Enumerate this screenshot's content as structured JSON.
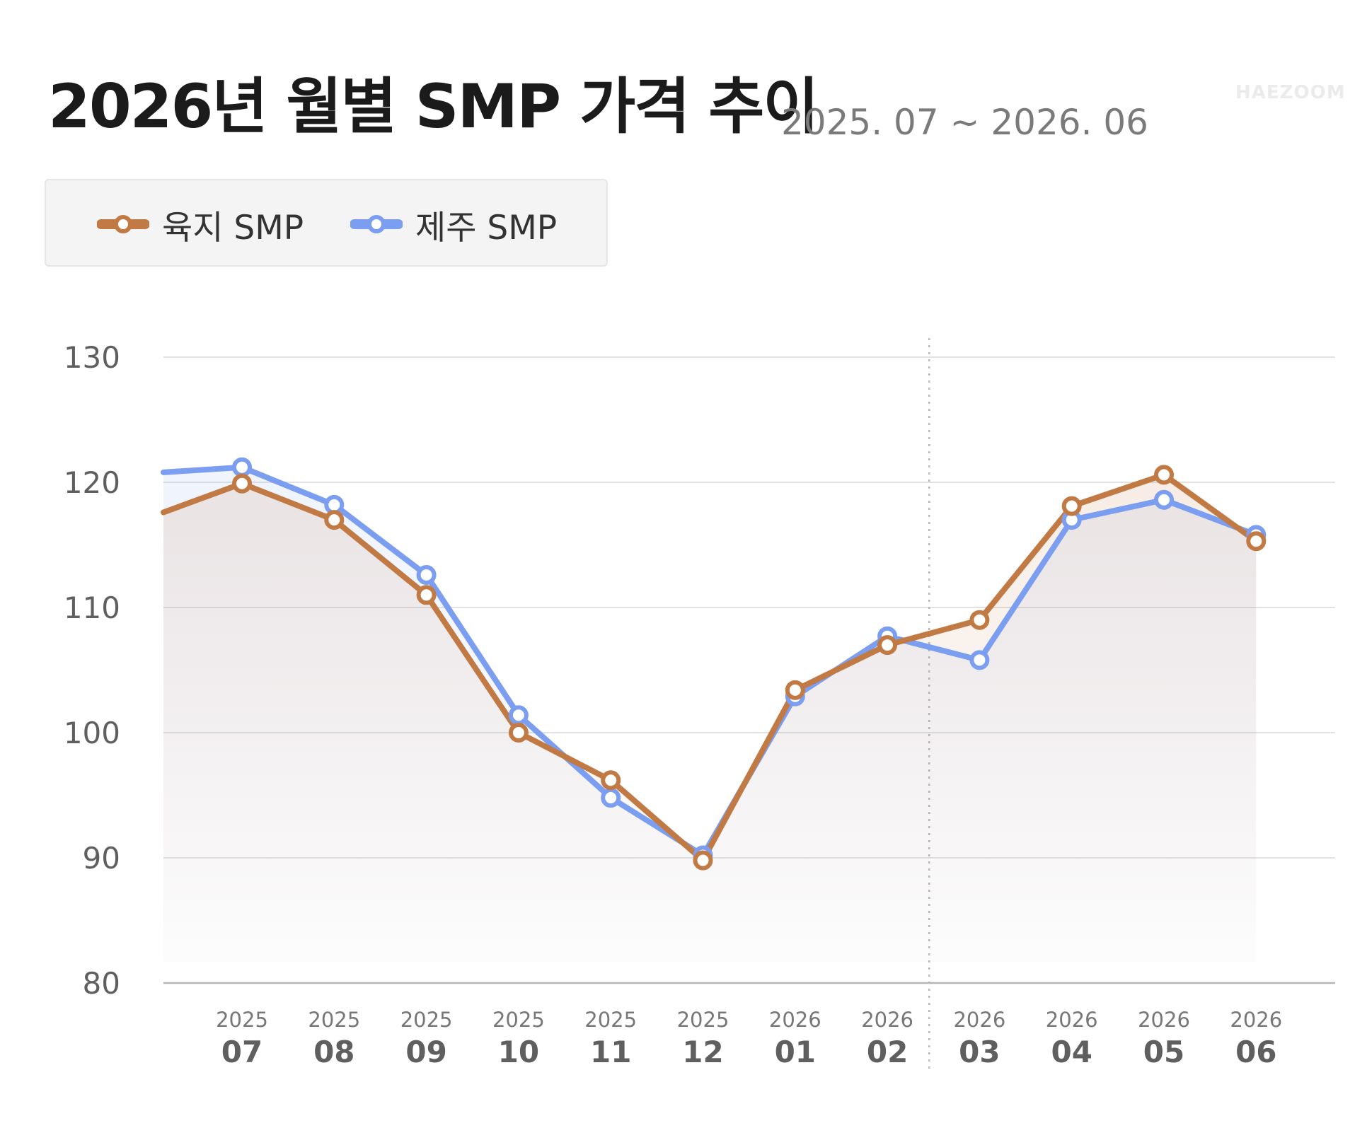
{
  "header": {
    "title": "2026년 월별 SMP 가격 추이",
    "subtitle": "2025. 07 ~ 2026. 06",
    "brand": "HAEZOOM"
  },
  "colors": {
    "land": "#c27a45",
    "jeju": "#7b9ef0",
    "grid": "#d8d8d8",
    "axis_text": "#5f5f5f"
  },
  "legend": [
    {
      "label": "육지 SMP",
      "color": "#c27a45"
    },
    {
      "label": "제주 SMP",
      "color": "#7b9ef0"
    }
  ],
  "chart_data": {
    "type": "line",
    "title": "2026년 월별 SMP 가격 추이",
    "subtitle": "2025. 07 ~ 2026. 06",
    "years": [
      "2025",
      "2025",
      "2025",
      "2025",
      "2025",
      "2025",
      "2026",
      "2026",
      "2026",
      "2026",
      "2026",
      "2026"
    ],
    "categories": [
      "07",
      "08",
      "09",
      "10",
      "11",
      "12",
      "01",
      "02",
      "03",
      "04",
      "05",
      "06"
    ],
    "ylim": [
      80,
      130
    ],
    "yticks": [
      80,
      90,
      100,
      110,
      120,
      130
    ],
    "grid": true,
    "legend_position": "top-left",
    "series": [
      {
        "name": "육지 SMP",
        "color": "#c27a45",
        "start": 117.6,
        "values": [
          119.9,
          117.0,
          111.0,
          100.0,
          96.2,
          89.8,
          103.4,
          107.0,
          109.0,
          118.1,
          120.6,
          115.3
        ]
      },
      {
        "name": "제주 SMP",
        "color": "#7b9ef0",
        "start": 120.8,
        "values": [
          121.2,
          118.2,
          112.6,
          101.4,
          94.8,
          90.2,
          102.9,
          107.7,
          105.8,
          117.0,
          118.6,
          115.8
        ]
      }
    ],
    "divider_between": [
      "02",
      "03"
    ]
  }
}
